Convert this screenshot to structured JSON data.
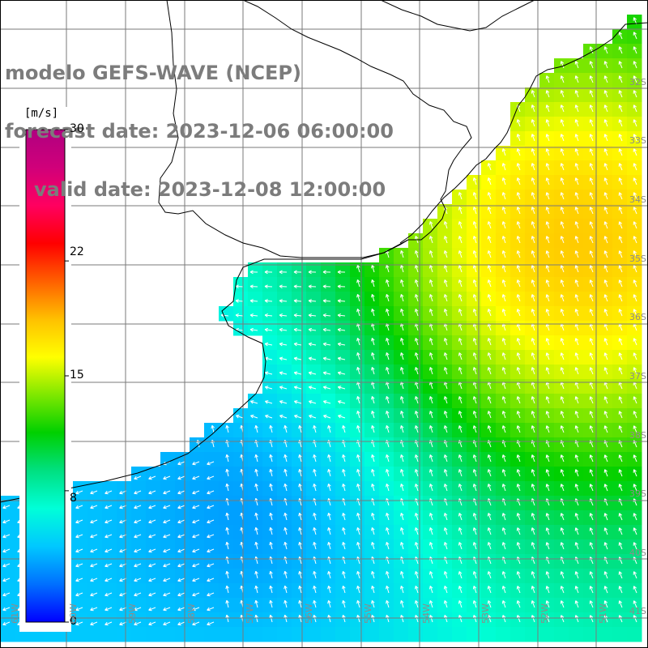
{
  "title": {
    "line1": "modelo GEFS-WAVE (NCEP)",
    "line2": "forecast date: 2023-12-06 06:00:00",
    "line3": "valid date: 2023-12-08 12:00:00"
  },
  "colorbar": {
    "units": "[m/s]",
    "ticks": [
      "30",
      "22",
      "15",
      "8",
      "0"
    ],
    "tick_values": [
      30,
      22,
      15,
      8,
      0
    ],
    "min": 0,
    "max": 30,
    "colors": [
      "#0000ff",
      "#0070ff",
      "#00c8ff",
      "#00ffd8",
      "#00e080",
      "#00d000",
      "#80e800",
      "#ffff00",
      "#ffc000",
      "#ff6000",
      "#ff0000",
      "#ff0060",
      "#d0007a",
      "#b00080"
    ]
  },
  "lat_labels": [
    "32S",
    "33S",
    "34S",
    "35S",
    "36S",
    "37S",
    "38S",
    "39S",
    "40S",
    "41S"
  ],
  "lon_labels": [
    "61W",
    "60W",
    "59W",
    "58W",
    "57W",
    "56W",
    "55W",
    "54W",
    "53W",
    "52W",
    "51W"
  ],
  "colors": {
    "land": "#ffffff",
    "grid": "#7a7a7a",
    "coast": "#000000",
    "label_gray": "#7c7c7c",
    "arrow": "#ffffff"
  }
}
